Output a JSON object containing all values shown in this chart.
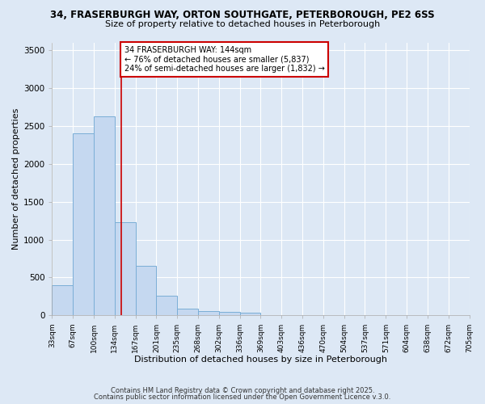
{
  "title_line1": "34, FRASERBURGH WAY, ORTON SOUTHGATE, PETERBOROUGH, PE2 6SS",
  "title_line2": "Size of property relative to detached houses in Peterborough",
  "xlabel": "Distribution of detached houses by size in Peterborough",
  "ylabel": "Number of detached properties",
  "bin_labels": [
    "33sqm",
    "67sqm",
    "100sqm",
    "134sqm",
    "167sqm",
    "201sqm",
    "235sqm",
    "268sqm",
    "302sqm",
    "336sqm",
    "369sqm",
    "403sqm",
    "436sqm",
    "470sqm",
    "504sqm",
    "537sqm",
    "571sqm",
    "604sqm",
    "638sqm",
    "672sqm",
    "705sqm"
  ],
  "bar_heights": [
    400,
    2400,
    2620,
    1230,
    650,
    260,
    90,
    60,
    50,
    35,
    0,
    0,
    0,
    0,
    0,
    0,
    0,
    0,
    0,
    0
  ],
  "bar_color": "#c5d8f0",
  "bar_edge_color": "#7aaed6",
  "background_color": "#dde8f5",
  "grid_color": "#ffffff",
  "vline_color": "#cc0000",
  "annotation_text": "34 FRASERBURGH WAY: 144sqm\n← 76% of detached houses are smaller (5,837)\n24% of semi-detached houses are larger (1,832) →",
  "annotation_box_color": "#ffffff",
  "annotation_box_edge": "#cc0000",
  "ylim": [
    0,
    3600
  ],
  "yticks": [
    0,
    500,
    1000,
    1500,
    2000,
    2500,
    3000,
    3500
  ],
  "footer_line1": "Contains HM Land Registry data © Crown copyright and database right 2025.",
  "footer_line2": "Contains public sector information licensed under the Open Government Licence v.3.0."
}
